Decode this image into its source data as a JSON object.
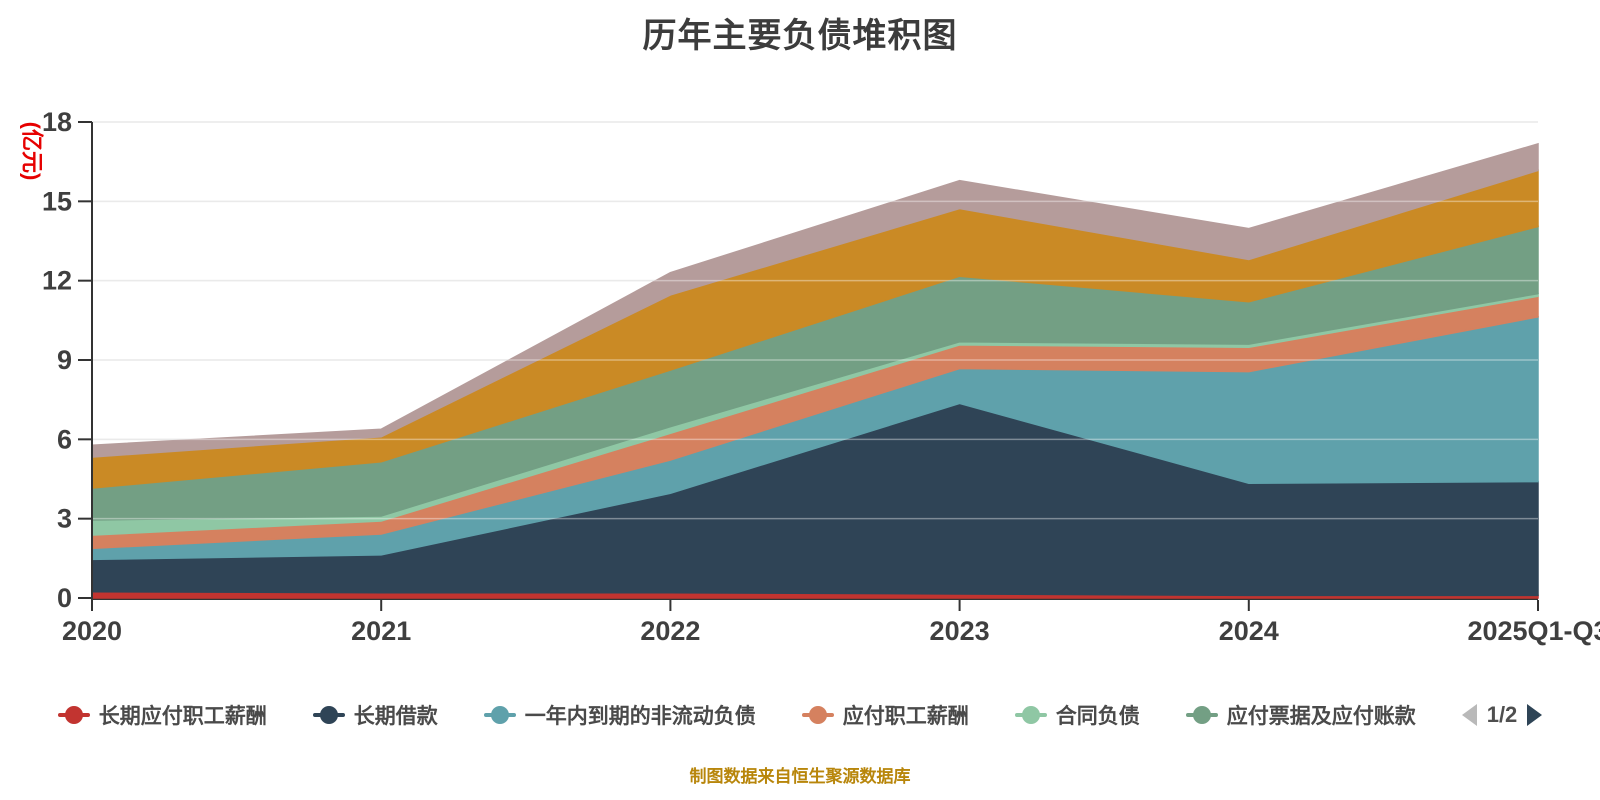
{
  "title": "历年主要负债堆积图",
  "y_axis_unit": "(亿元)",
  "colors": {
    "title_text": "#3c3c3c",
    "axis_label_text": "#3f3f3f",
    "axis_line": "#333333",
    "gridline": "#dddddd",
    "y_unit_text": "#e60000",
    "legend_text": "#4a4a4a",
    "footer_text": "#b8860b",
    "pager_prev": "#b9b9b9",
    "pager_next": "#2e4456"
  },
  "legend": {
    "page_indicator": "1/2"
  },
  "footer": {
    "text": "制图数据来自恒生聚源数据库"
  },
  "chart_data": {
    "type": "area",
    "stacked": true,
    "title": "历年主要负债堆积图",
    "x": [
      "2020",
      "2021",
      "2022",
      "2023",
      "2024",
      "2025Q1-Q3"
    ],
    "xlabel": "",
    "ylabel": "(亿元)",
    "ylim": [
      0,
      18
    ],
    "y_ticks": [
      0,
      3,
      6,
      9,
      12,
      15,
      18
    ],
    "grid": true,
    "legend_position": "bottom",
    "series": [
      {
        "name": "长期应付职工薪酬",
        "color": "#c23430",
        "legend_page": 1,
        "values": [
          0.24,
          0.2,
          0.2,
          0.15,
          0.1,
          0.1
        ]
      },
      {
        "name": "长期借款",
        "color": "#2f4456",
        "legend_page": 1,
        "values": [
          1.22,
          1.43,
          3.76,
          7.21,
          4.24,
          4.3
        ]
      },
      {
        "name": "一年内到期的非流动负债",
        "color": "#5fa1ab",
        "legend_page": 1,
        "values": [
          0.42,
          0.79,
          1.26,
          1.32,
          4.22,
          6.23
        ]
      },
      {
        "name": "应付职工薪酬",
        "color": "#d5815f",
        "legend_page": 1,
        "values": [
          0.5,
          0.49,
          1.01,
          0.89,
          0.92,
          0.78
        ]
      },
      {
        "name": "合同负债",
        "color": "#8fc7a4",
        "legend_page": 1,
        "values": [
          0.57,
          0.19,
          0.25,
          0.12,
          0.12,
          0.1
        ]
      },
      {
        "name": "应付票据及应付账款",
        "color": "#739f84",
        "legend_page": 1,
        "values": [
          1.21,
          2.05,
          2.14,
          2.48,
          1.6,
          2.54
        ]
      },
      {
        "name": "",
        "color": "#ca8a25",
        "legend_page": 2,
        "values": [
          1.17,
          0.95,
          2.84,
          2.56,
          1.6,
          2.12
        ]
      },
      {
        "name": "",
        "color": "#b59c9b",
        "legend_page": 2,
        "values": [
          0.45,
          0.28,
          0.84,
          1.05,
          1.17,
          1.0
        ]
      }
    ]
  }
}
